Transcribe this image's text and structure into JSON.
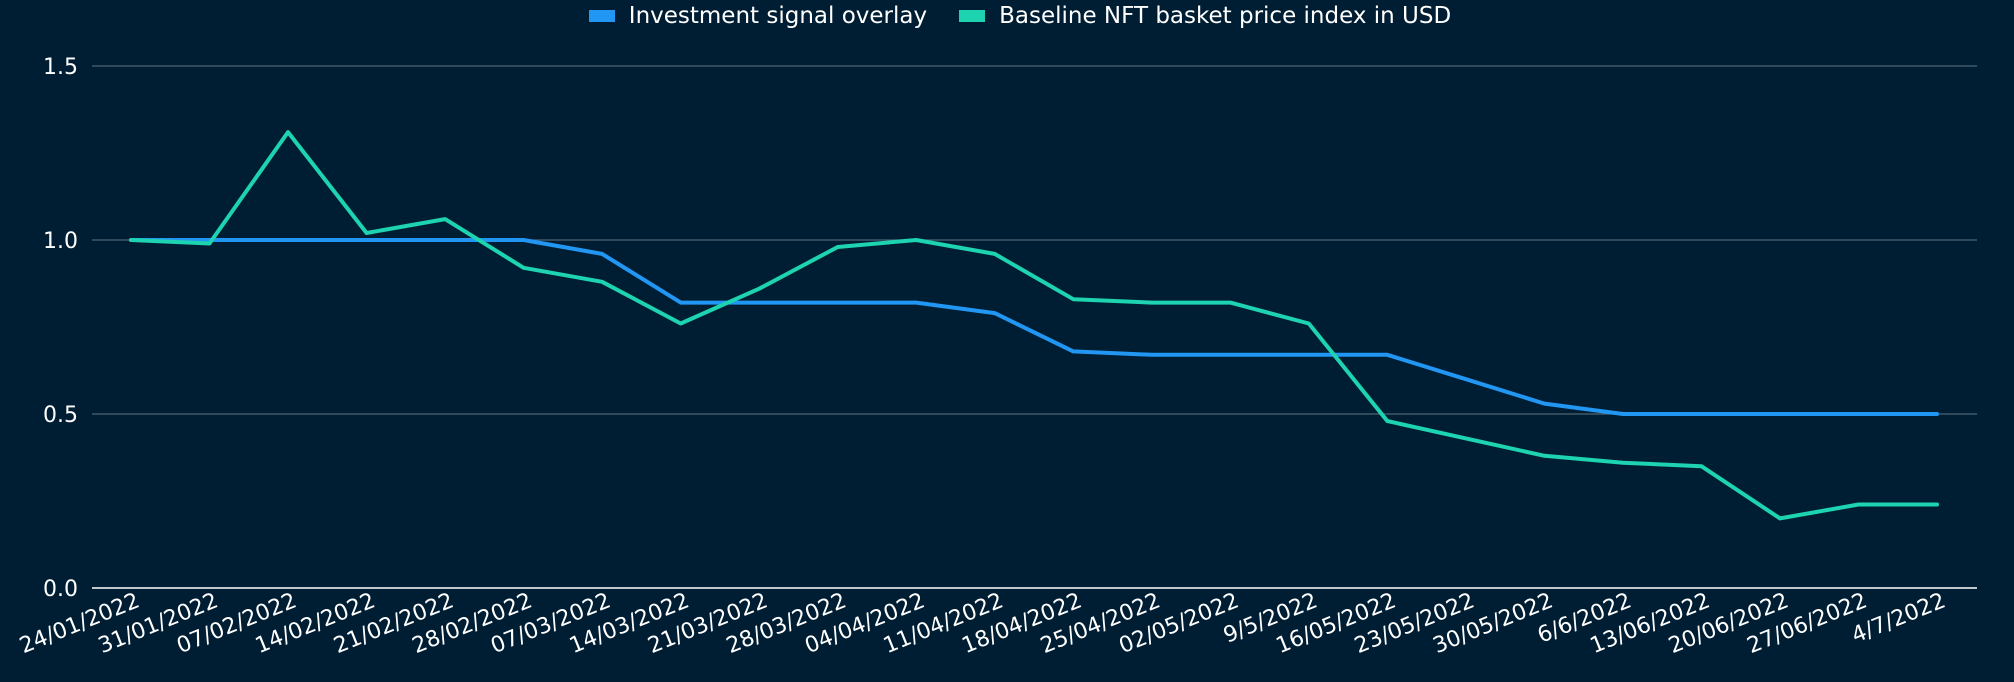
{
  "chart_data": {
    "type": "line",
    "title": "",
    "xlabel": "",
    "ylabel": "",
    "ylim": [
      0,
      1.5
    ],
    "yticks": [
      {
        "value": 0.0,
        "label": "0.0"
      },
      {
        "value": 0.5,
        "label": "0.5"
      },
      {
        "value": 1.0,
        "label": "1.0"
      },
      {
        "value": 1.5,
        "label": "1.5"
      }
    ],
    "grid": true,
    "legend_position": "top-center",
    "x": [
      "24/01/2022",
      "31/01/2022",
      "07/02/2022",
      "14/02/2022",
      "21/02/2022",
      "28/02/2022",
      "07/03/2022",
      "14/03/2022",
      "21/03/2022",
      "28/03/2022",
      "04/04/2022",
      "11/04/2022",
      "18/04/2022",
      "25/04/2022",
      "02/05/2022",
      "9/5/2022",
      "16/05/2022",
      "23/05/2022",
      "30/05/2022",
      "6/6/2022",
      "13/06/2022",
      "20/06/2022",
      "27/06/2022",
      "4/7/2022"
    ],
    "series": [
      {
        "name": "Investment signal overlay",
        "color": "#2196f3",
        "values": [
          1.0,
          1.0,
          1.0,
          1.0,
          1.0,
          1.0,
          0.96,
          0.82,
          0.82,
          0.82,
          0.82,
          0.79,
          0.68,
          0.67,
          0.67,
          0.67,
          0.67,
          0.6,
          0.53,
          0.5,
          0.5,
          0.5,
          0.5,
          0.5
        ]
      },
      {
        "name": "Baseline NFT basket price index in USD",
        "color": "#1dd3b0",
        "values": [
          1.0,
          0.99,
          1.31,
          1.02,
          1.06,
          0.92,
          0.88,
          0.76,
          0.86,
          0.98,
          1.0,
          0.96,
          0.83,
          0.82,
          0.82,
          0.76,
          0.48,
          0.43,
          0.38,
          0.36,
          0.35,
          0.2,
          0.24,
          0.24
        ]
      }
    ]
  }
}
